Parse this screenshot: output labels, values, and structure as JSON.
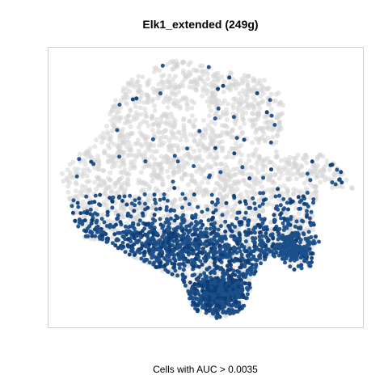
{
  "chart_data": {
    "type": "scatter",
    "title": "Elk1_extended (249g)",
    "subtitle": "",
    "xlabel": "Cells with AUC > 0.0035",
    "ylabel": "",
    "axes_visible": false,
    "grid": false,
    "legend": "none",
    "colors": {
      "inactive": "#d3d3d3",
      "active": "#1b4f8a",
      "active_dark": "#0f3c73",
      "frame": "#cfcfcf"
    },
    "series": [
      {
        "role": "cells-below-threshold",
        "color": "#d3d3d3"
      },
      {
        "role": "cells-above-threshold",
        "color": "#1b4f8a"
      }
    ]
  }
}
